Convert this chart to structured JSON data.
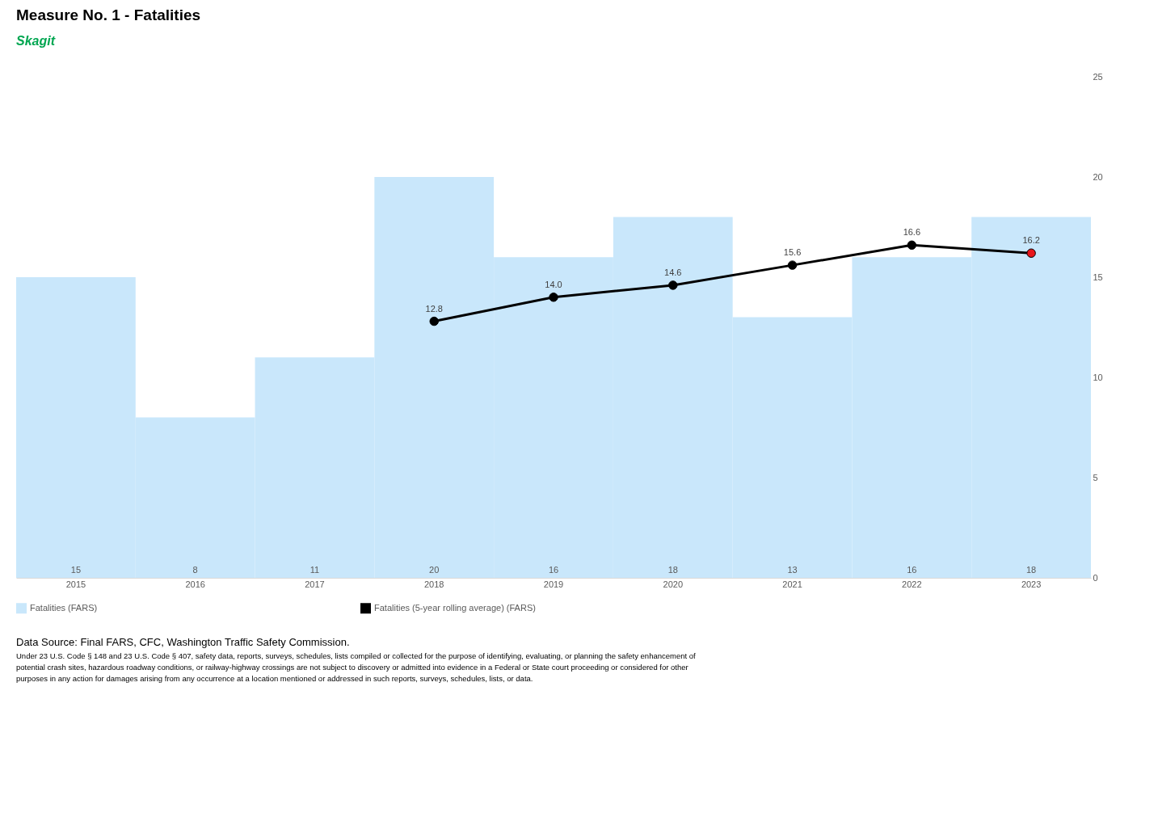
{
  "chart_data": {
    "type": "bar",
    "title": "Measure No. 1 - Fatalities",
    "subtitle": "Skagit",
    "categories": [
      "2015",
      "2016",
      "2017",
      "2018",
      "2019",
      "2020",
      "2021",
      "2022",
      "2023"
    ],
    "series": [
      {
        "name": "Fatalities (FARS)",
        "color": "#c9e7fb",
        "values": [
          15,
          8,
          11,
          20,
          16,
          18,
          13,
          16,
          18
        ]
      },
      {
        "name": "Fatalities (5-year rolling average) (FARS)",
        "type": "line",
        "color": "#000000",
        "colors": [
          null,
          null,
          null,
          "#000000",
          "#000000",
          "#000000",
          "#000000",
          "#000000",
          "#e8161b"
        ],
        "values": [
          null,
          null,
          null,
          12.8,
          14.0,
          14.6,
          15.6,
          16.6,
          16.2
        ],
        "value_labels": [
          null,
          null,
          null,
          "12.8",
          "14.0",
          "14.6",
          "15.6",
          "16.6",
          "16.2"
        ]
      }
    ],
    "ylim": [
      0,
      25
    ],
    "yticks": [
      0,
      5,
      10,
      15,
      20,
      25
    ],
    "grid": false,
    "legend": "bottom",
    "marker": "circle",
    "data_labels": true,
    "annotations": [
      "Data Source: Final FARS, CFC, Washington Traffic Safety Commission.",
      "Under 23 U.S. Code § 148 and 23 U.S. Code § 407, safety data, reports, surveys, schedules, lists compiled or collected for the purpose of identifying, evaluating, or planning the safety enhancement of potential crash sites, hazardous roadway conditions, or railway-highway crossings are not subject  to discovery or admitted into evidence in a Federal or State court proceeding or considered for other purposes in any action for damages arising from any occurrence at a location mentioned or addressed in such reports, surveys, schedules, lists, or data."
    ]
  }
}
